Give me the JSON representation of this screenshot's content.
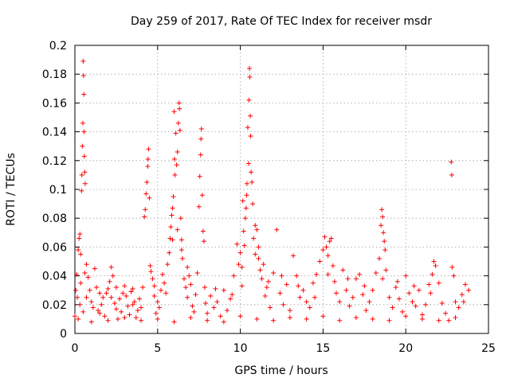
{
  "chart_data": {
    "type": "scatter",
    "title": "Day 259 of 2017, Rate Of TEC Index for receiver msdr",
    "xlabel": "GPS time / hours",
    "ylabel": "ROTI / TECUs",
    "xlim": [
      0,
      25
    ],
    "ylim": [
      0,
      0.2
    ],
    "x_ticks": [
      "0",
      "5",
      "10",
      "15",
      "20",
      "25"
    ],
    "y_ticks": [
      "0",
      "0.02",
      "0.04",
      "0.06",
      "0.08",
      "0.1",
      "0.12",
      "0.14",
      "0.16",
      "0.18",
      "0.2"
    ],
    "grid": true,
    "marker": "plus",
    "colors": {
      "series": "#ff0000",
      "grid": "#a0a0a0"
    },
    "points": [
      [
        0.0,
        0.012
      ],
      [
        0.05,
        0.03
      ],
      [
        0.1,
        0.041
      ],
      [
        0.15,
        0.025
      ],
      [
        0.2,
        0.058
      ],
      [
        0.25,
        0.066
      ],
      [
        0.3,
        0.069
      ],
      [
        0.35,
        0.055
      ],
      [
        0.4,
        0.099
      ],
      [
        0.42,
        0.11
      ],
      [
        0.45,
        0.13
      ],
      [
        0.48,
        0.146
      ],
      [
        0.5,
        0.189
      ],
      [
        0.52,
        0.179
      ],
      [
        0.54,
        0.166
      ],
      [
        0.55,
        0.14
      ],
      [
        0.57,
        0.123
      ],
      [
        0.6,
        0.112
      ],
      [
        0.62,
        0.104
      ],
      [
        0.3,
        0.02
      ],
      [
        0.5,
        0.015
      ],
      [
        0.7,
        0.048
      ],
      [
        0.8,
        0.039
      ],
      [
        0.9,
        0.03
      ],
      [
        1.0,
        0.022
      ],
      [
        1.1,
        0.018
      ],
      [
        1.2,
        0.045
      ],
      [
        1.3,
        0.032
      ],
      [
        1.4,
        0.016
      ],
      [
        1.5,
        0.014
      ],
      [
        1.6,
        0.02
      ],
      [
        1.7,
        0.025
      ],
      [
        1.8,
        0.012
      ],
      [
        1.9,
        0.028
      ],
      [
        2.0,
        0.031
      ],
      [
        2.1,
        0.036
      ],
      [
        2.2,
        0.046
      ],
      [
        2.3,
        0.04
      ],
      [
        2.4,
        0.021
      ],
      [
        2.5,
        0.017
      ],
      [
        2.6,
        0.01
      ],
      [
        2.7,
        0.024
      ],
      [
        2.8,
        0.015
      ],
      [
        2.9,
        0.028
      ],
      [
        3.0,
        0.033
      ],
      [
        3.1,
        0.026
      ],
      [
        3.2,
        0.019
      ],
      [
        3.3,
        0.013
      ],
      [
        3.4,
        0.029
      ],
      [
        3.5,
        0.031
      ],
      [
        3.6,
        0.022
      ],
      [
        3.7,
        0.011
      ],
      [
        3.8,
        0.016
      ],
      [
        3.9,
        0.024
      ],
      [
        4.0,
        0.018
      ],
      [
        4.1,
        0.032
      ],
      [
        4.2,
        0.081
      ],
      [
        4.25,
        0.086
      ],
      [
        4.3,
        0.097
      ],
      [
        4.35,
        0.105
      ],
      [
        4.4,
        0.116
      ],
      [
        4.42,
        0.121
      ],
      [
        4.45,
        0.128
      ],
      [
        4.5,
        0.094
      ],
      [
        4.55,
        0.047
      ],
      [
        4.6,
        0.043
      ],
      [
        4.7,
        0.038
      ],
      [
        4.8,
        0.026
      ],
      [
        4.9,
        0.014
      ],
      [
        5.0,
        0.022
      ],
      [
        5.1,
        0.018
      ],
      [
        5.2,
        0.03
      ],
      [
        5.3,
        0.041
      ],
      [
        5.4,
        0.035
      ],
      [
        5.5,
        0.028
      ],
      [
        5.6,
        0.048
      ],
      [
        5.7,
        0.056
      ],
      [
        5.75,
        0.066
      ],
      [
        5.8,
        0.074
      ],
      [
        5.85,
        0.082
      ],
      [
        5.9,
        0.087
      ],
      [
        5.95,
        0.095
      ],
      [
        6.0,
        0.154
      ],
      [
        6.02,
        0.121
      ],
      [
        6.05,
        0.11
      ],
      [
        6.1,
        0.139
      ],
      [
        6.15,
        0.117
      ],
      [
        6.2,
        0.126
      ],
      [
        6.25,
        0.146
      ],
      [
        6.3,
        0.16
      ],
      [
        6.32,
        0.156
      ],
      [
        6.35,
        0.141
      ],
      [
        6.4,
        0.08
      ],
      [
        6.45,
        0.065
      ],
      [
        6.5,
        0.052
      ],
      [
        6.6,
        0.038
      ],
      [
        6.7,
        0.032
      ],
      [
        6.8,
        0.025
      ],
      [
        6.9,
        0.04
      ],
      [
        7.0,
        0.034
      ],
      [
        7.1,
        0.019
      ],
      [
        7.2,
        0.015
      ],
      [
        7.3,
        0.027
      ],
      [
        7.4,
        0.042
      ],
      [
        7.5,
        0.088
      ],
      [
        7.55,
        0.109
      ],
      [
        7.6,
        0.124
      ],
      [
        7.62,
        0.135
      ],
      [
        7.65,
        0.142
      ],
      [
        7.7,
        0.096
      ],
      [
        7.75,
        0.071
      ],
      [
        7.8,
        0.064
      ],
      [
        7.85,
        0.032
      ],
      [
        7.9,
        0.021
      ],
      [
        8.0,
        0.014
      ],
      [
        8.2,
        0.026
      ],
      [
        8.4,
        0.018
      ],
      [
        8.6,
        0.022
      ],
      [
        8.8,
        0.012
      ],
      [
        9.0,
        0.03
      ],
      [
        9.2,
        0.016
      ],
      [
        9.4,
        0.024
      ],
      [
        9.6,
        0.04
      ],
      [
        9.8,
        0.062
      ],
      [
        9.9,
        0.048
      ],
      [
        10.0,
        0.056
      ],
      [
        10.1,
        0.033
      ],
      [
        10.15,
        0.092
      ],
      [
        10.2,
        0.071
      ],
      [
        10.25,
        0.061
      ],
      [
        10.3,
        0.08
      ],
      [
        10.35,
        0.087
      ],
      [
        10.38,
        0.096
      ],
      [
        10.4,
        0.104
      ],
      [
        10.45,
        0.143
      ],
      [
        10.5,
        0.118
      ],
      [
        10.52,
        0.162
      ],
      [
        10.55,
        0.184
      ],
      [
        10.57,
        0.178
      ],
      [
        10.6,
        0.151
      ],
      [
        10.62,
        0.137
      ],
      [
        10.65,
        0.112
      ],
      [
        10.7,
        0.105
      ],
      [
        10.75,
        0.09
      ],
      [
        10.8,
        0.066
      ],
      [
        10.9,
        0.055
      ],
      [
        11.0,
        0.072
      ],
      [
        11.1,
        0.06
      ],
      [
        11.2,
        0.044
      ],
      [
        11.3,
        0.038
      ],
      [
        11.4,
        0.048
      ],
      [
        11.5,
        0.026
      ],
      [
        11.6,
        0.032
      ],
      [
        11.8,
        0.018
      ],
      [
        12.0,
        0.042
      ],
      [
        12.2,
        0.072
      ],
      [
        12.4,
        0.028
      ],
      [
        12.6,
        0.02
      ],
      [
        12.8,
        0.034
      ],
      [
        13.0,
        0.016
      ],
      [
        13.2,
        0.054
      ],
      [
        13.4,
        0.04
      ],
      [
        13.6,
        0.025
      ],
      [
        13.8,
        0.03
      ],
      [
        14.0,
        0.022
      ],
      [
        14.2,
        0.018
      ],
      [
        14.4,
        0.035
      ],
      [
        14.6,
        0.041
      ],
      [
        14.8,
        0.05
      ],
      [
        15.0,
        0.058
      ],
      [
        15.1,
        0.067
      ],
      [
        15.2,
        0.06
      ],
      [
        15.3,
        0.054
      ],
      [
        15.4,
        0.064
      ],
      [
        15.5,
        0.066
      ],
      [
        15.6,
        0.047
      ],
      [
        15.7,
        0.036
      ],
      [
        15.8,
        0.028
      ],
      [
        16.0,
        0.022
      ],
      [
        16.2,
        0.044
      ],
      [
        16.4,
        0.03
      ],
      [
        16.6,
        0.019
      ],
      [
        16.8,
        0.025
      ],
      [
        17.0,
        0.038
      ],
      [
        17.2,
        0.041
      ],
      [
        17.4,
        0.027
      ],
      [
        17.6,
        0.016
      ],
      [
        17.8,
        0.022
      ],
      [
        18.0,
        0.03
      ],
      [
        18.2,
        0.042
      ],
      [
        18.4,
        0.052
      ],
      [
        18.5,
        0.075
      ],
      [
        18.55,
        0.086
      ],
      [
        18.6,
        0.081
      ],
      [
        18.65,
        0.07
      ],
      [
        18.7,
        0.064
      ],
      [
        18.75,
        0.058
      ],
      [
        18.8,
        0.044
      ],
      [
        19.0,
        0.025
      ],
      [
        19.2,
        0.018
      ],
      [
        19.4,
        0.032
      ],
      [
        19.6,
        0.024
      ],
      [
        19.8,
        0.015
      ],
      [
        20.0,
        0.04
      ],
      [
        20.2,
        0.028
      ],
      [
        20.4,
        0.022
      ],
      [
        20.6,
        0.019
      ],
      [
        20.8,
        0.03
      ],
      [
        21.0,
        0.013
      ],
      [
        21.2,
        0.02
      ],
      [
        21.4,
        0.034
      ],
      [
        21.6,
        0.041
      ],
      [
        21.7,
        0.05
      ],
      [
        21.8,
        0.047
      ],
      [
        22.0,
        0.035
      ],
      [
        22.2,
        0.021
      ],
      [
        22.4,
        0.014
      ],
      [
        22.6,
        0.009
      ],
      [
        22.75,
        0.119
      ],
      [
        22.78,
        0.11
      ],
      [
        22.8,
        0.046
      ],
      [
        22.9,
        0.04
      ],
      [
        23.0,
        0.022
      ],
      [
        23.2,
        0.018
      ],
      [
        23.4,
        0.027
      ],
      [
        23.6,
        0.034
      ],
      [
        23.8,
        0.03
      ],
      [
        0.2,
        0.01
      ],
      [
        1.0,
        0.008
      ],
      [
        2.0,
        0.009
      ],
      [
        3.0,
        0.011
      ],
      [
        4.0,
        0.009
      ],
      [
        5.0,
        0.01
      ],
      [
        6.0,
        0.008
      ],
      [
        7.0,
        0.011
      ],
      [
        8.0,
        0.009
      ],
      [
        9.0,
        0.008
      ],
      [
        10.0,
        0.012
      ],
      [
        11.0,
        0.01
      ],
      [
        12.0,
        0.009
      ],
      [
        13.0,
        0.011
      ],
      [
        14.0,
        0.01
      ],
      [
        15.0,
        0.012
      ],
      [
        16.0,
        0.009
      ],
      [
        17.0,
        0.011
      ],
      [
        18.0,
        0.01
      ],
      [
        19.0,
        0.009
      ],
      [
        20.0,
        0.012
      ],
      [
        21.0,
        0.01
      ],
      [
        22.0,
        0.009
      ],
      [
        23.0,
        0.011
      ],
      [
        0.7,
        0.025
      ],
      [
        1.5,
        0.028
      ],
      [
        2.5,
        0.032
      ],
      [
        3.5,
        0.02
      ],
      [
        4.8,
        0.033
      ],
      [
        6.8,
        0.046
      ],
      [
        8.5,
        0.031
      ],
      [
        9.5,
        0.027
      ],
      [
        11.7,
        0.036
      ],
      [
        12.5,
        0.04
      ],
      [
        13.5,
        0.033
      ],
      [
        14.5,
        0.025
      ],
      [
        16.5,
        0.038
      ],
      [
        17.5,
        0.033
      ],
      [
        19.5,
        0.036
      ],
      [
        20.5,
        0.033
      ],
      [
        21.5,
        0.028
      ],
      [
        23.5,
        0.022
      ],
      [
        10.1,
        0.046
      ],
      [
        10.9,
        0.075
      ],
      [
        11.1,
        0.052
      ],
      [
        5.9,
        0.065
      ],
      [
        6.2,
        0.072
      ],
      [
        6.45,
        0.058
      ],
      [
        15.3,
        0.041
      ],
      [
        18.6,
        0.038
      ],
      [
        0.35,
        0.035
      ],
      [
        0.6,
        0.042
      ],
      [
        2.2,
        0.025
      ]
    ]
  }
}
